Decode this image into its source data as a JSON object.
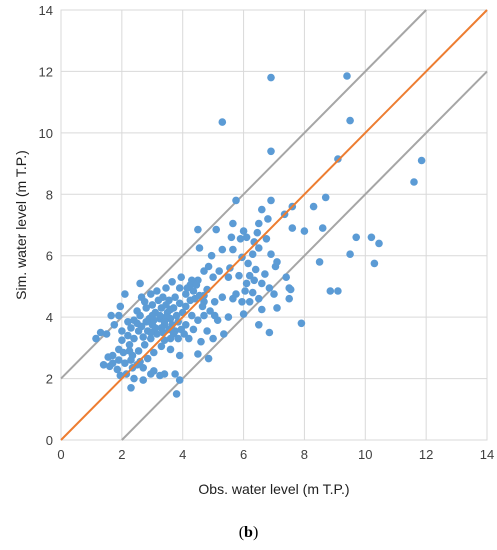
{
  "chart_data": {
    "type": "scatter",
    "xlabel": "Obs. water level (m T.P.)",
    "ylabel": "Sim. water level (m T.P.)",
    "xlim": [
      0,
      14
    ],
    "ylim": [
      0,
      14
    ],
    "xticks": [
      "0",
      "2",
      "4",
      "6",
      "8",
      "10",
      "12",
      "14"
    ],
    "yticks": [
      "0",
      "2",
      "4",
      "6",
      "8",
      "10",
      "12",
      "14"
    ],
    "grid": true,
    "colors": {
      "points": "#5b9bd5",
      "identity_line": "#ed7d31",
      "band_lines": "#a6a6a6",
      "grid": "#d9d9d9"
    },
    "identity_line": {
      "x": [
        0,
        14
      ],
      "y": [
        0,
        14
      ]
    },
    "upper_line": {
      "x": [
        0,
        12
      ],
      "y": [
        2,
        14
      ]
    },
    "lower_line": {
      "x": [
        2,
        14
      ],
      "y": [
        0,
        12
      ]
    },
    "points": [
      [
        6.9,
        11.8
      ],
      [
        9.4,
        11.85
      ],
      [
        5.3,
        10.35
      ],
      [
        9.5,
        10.4
      ],
      [
        6.9,
        9.4
      ],
      [
        9.1,
        9.15
      ],
      [
        11.85,
        9.1
      ],
      [
        11.6,
        8.4
      ],
      [
        8.7,
        7.9
      ],
      [
        5.75,
        7.8
      ],
      [
        6.9,
        7.8
      ],
      [
        8.3,
        7.6
      ],
      [
        7.6,
        7.6
      ],
      [
        6.6,
        7.5
      ],
      [
        7.35,
        7.35
      ],
      [
        6.8,
        7.2
      ],
      [
        6.5,
        7.05
      ],
      [
        6.0,
        6.8
      ],
      [
        7.6,
        6.9
      ],
      [
        8.0,
        6.8
      ],
      [
        8.6,
        6.9
      ],
      [
        9.7,
        6.6
      ],
      [
        10.2,
        6.6
      ],
      [
        10.45,
        6.4
      ],
      [
        9.5,
        6.05
      ],
      [
        10.3,
        5.75
      ],
      [
        8.5,
        5.8
      ],
      [
        7.4,
        5.3
      ],
      [
        7.05,
        5.65
      ],
      [
        6.7,
        5.4
      ],
      [
        6.4,
        5.55
      ],
      [
        6.15,
        5.75
      ],
      [
        5.95,
        5.95
      ],
      [
        5.65,
        6.2
      ],
      [
        5.9,
        6.55
      ],
      [
        5.6,
        6.6
      ],
      [
        6.35,
        6.45
      ],
      [
        6.75,
        6.55
      ],
      [
        6.5,
        6.25
      ],
      [
        6.9,
        6.05
      ],
      [
        7.1,
        5.8
      ],
      [
        6.3,
        6.05
      ],
      [
        5.3,
        6.2
      ],
      [
        4.95,
        6.0
      ],
      [
        4.55,
        6.25
      ],
      [
        4.5,
        6.85
      ],
      [
        5.1,
        6.85
      ],
      [
        5.65,
        7.05
      ],
      [
        7.5,
        4.95
      ],
      [
        7.5,
        4.6
      ],
      [
        7.0,
        4.75
      ],
      [
        6.5,
        4.6
      ],
      [
        6.2,
        4.5
      ],
      [
        6.1,
        5.1
      ],
      [
        6.3,
        4.8
      ],
      [
        6.85,
        4.95
      ],
      [
        6.6,
        5.1
      ],
      [
        5.5,
        5.3
      ],
      [
        5.2,
        5.5
      ],
      [
        5.0,
        5.3
      ],
      [
        4.7,
        5.5
      ],
      [
        4.5,
        5.2
      ],
      [
        4.3,
        5.2
      ],
      [
        4.8,
        4.9
      ],
      [
        5.3,
        4.65
      ],
      [
        5.65,
        4.6
      ],
      [
        5.95,
        4.5
      ],
      [
        6.0,
        4.1
      ],
      [
        6.5,
        3.75
      ],
      [
        6.85,
        3.5
      ],
      [
        7.9,
        3.8
      ],
      [
        8.85,
        4.85
      ],
      [
        9.1,
        4.85
      ],
      [
        5.5,
        4.0
      ],
      [
        5.15,
        3.9
      ],
      [
        4.9,
        4.2
      ],
      [
        4.7,
        4.5
      ],
      [
        4.4,
        4.6
      ],
      [
        4.1,
        4.75
      ],
      [
        3.9,
        4.95
      ],
      [
        3.65,
        5.15
      ],
      [
        3.75,
        4.65
      ],
      [
        3.55,
        4.55
      ],
      [
        3.35,
        4.65
      ],
      [
        3.2,
        4.55
      ],
      [
        2.95,
        4.75
      ],
      [
        2.65,
        4.65
      ],
      [
        2.6,
        5.1
      ],
      [
        2.1,
        4.75
      ],
      [
        1.95,
        4.35
      ],
      [
        1.9,
        4.05
      ],
      [
        1.65,
        4.05
      ],
      [
        1.75,
        3.75
      ],
      [
        2.0,
        3.55
      ],
      [
        2.3,
        3.65
      ],
      [
        2.4,
        3.9
      ],
      [
        2.6,
        4.05
      ],
      [
        2.8,
        4.3
      ],
      [
        2.9,
        3.95
      ],
      [
        3.1,
        4.15
      ],
      [
        3.3,
        4.3
      ],
      [
        3.5,
        4.15
      ],
      [
        3.7,
        4.3
      ],
      [
        3.9,
        4.45
      ],
      [
        4.1,
        4.35
      ],
      [
        4.3,
        4.05
      ],
      [
        4.5,
        3.9
      ],
      [
        4.7,
        4.05
      ],
      [
        4.35,
        3.6
      ],
      [
        4.1,
        3.75
      ],
      [
        3.85,
        3.85
      ],
      [
        3.6,
        3.95
      ],
      [
        3.4,
        3.75
      ],
      [
        3.25,
        3.95
      ],
      [
        3.0,
        3.75
      ],
      [
        2.85,
        3.55
      ],
      [
        2.7,
        3.35
      ],
      [
        2.55,
        3.55
      ],
      [
        2.4,
        3.3
      ],
      [
        2.25,
        3.1
      ],
      [
        2.05,
        2.85
      ],
      [
        1.9,
        2.6
      ],
      [
        1.7,
        2.5
      ],
      [
        1.85,
        2.3
      ],
      [
        2.1,
        2.5
      ],
      [
        2.35,
        2.75
      ],
      [
        2.55,
        2.9
      ],
      [
        2.75,
        3.1
      ],
      [
        2.95,
        3.3
      ],
      [
        3.15,
        3.45
      ],
      [
        3.35,
        3.5
      ],
      [
        3.55,
        3.6
      ],
      [
        3.75,
        3.55
      ],
      [
        3.95,
        3.6
      ],
      [
        4.2,
        3.3
      ],
      [
        4.6,
        3.2
      ],
      [
        5.0,
        3.3
      ],
      [
        5.35,
        3.45
      ],
      [
        4.5,
        2.8
      ],
      [
        4.85,
        2.65
      ],
      [
        3.9,
        2.75
      ],
      [
        3.6,
        2.95
      ],
      [
        3.3,
        3.05
      ],
      [
        3.05,
        2.85
      ],
      [
        2.85,
        2.65
      ],
      [
        2.6,
        2.55
      ],
      [
        2.35,
        2.35
      ],
      [
        2.15,
        2.15
      ],
      [
        2.4,
        2.0
      ],
      [
        2.3,
        1.7
      ],
      [
        2.7,
        1.95
      ],
      [
        3.05,
        2.25
      ],
      [
        3.25,
        2.1
      ],
      [
        3.4,
        2.15
      ],
      [
        3.75,
        2.15
      ],
      [
        3.9,
        1.95
      ],
      [
        3.8,
        1.5
      ],
      [
        2.95,
        2.15
      ],
      [
        1.15,
        3.3
      ],
      [
        1.3,
        3.5
      ],
      [
        1.5,
        3.45
      ],
      [
        1.4,
        2.45
      ],
      [
        1.6,
        2.4
      ],
      [
        1.7,
        2.75
      ],
      [
        1.9,
        2.95
      ],
      [
        1.55,
        2.7
      ],
      [
        1.95,
        2.1
      ],
      [
        2.2,
        3.85
      ],
      [
        2.5,
        4.2
      ],
      [
        3.15,
        4.85
      ],
      [
        3.45,
        4.95
      ],
      [
        3.95,
        5.3
      ],
      [
        4.25,
        5.05
      ],
      [
        4.7,
        4.7
      ],
      [
        5.05,
        4.5
      ],
      [
        4.65,
        4.35
      ],
      [
        4.0,
        4.15
      ],
      [
        3.8,
        4.05
      ],
      [
        3.6,
        4.25
      ],
      [
        3.45,
        4.4
      ],
      [
        3.25,
        4.05
      ],
      [
        3.05,
        3.9
      ],
      [
        2.8,
        3.85
      ],
      [
        2.65,
        3.7
      ],
      [
        2.5,
        3.8
      ],
      [
        2.75,
        4.5
      ],
      [
        3.0,
        4.4
      ],
      [
        3.4,
        3.25
      ],
      [
        3.6,
        3.3
      ],
      [
        3.85,
        3.3
      ],
      [
        4.05,
        3.45
      ],
      [
        3.65,
        3.75
      ],
      [
        3.45,
        4.0
      ],
      [
        3.3,
        3.65
      ],
      [
        3.1,
        3.65
      ],
      [
        2.95,
        3.5
      ],
      [
        4.25,
        4.55
      ],
      [
        4.35,
        4.85
      ],
      [
        4.55,
        4.7
      ],
      [
        5.05,
        4.05
      ],
      [
        5.55,
        5.6
      ],
      [
        5.85,
        5.35
      ],
      [
        6.2,
        5.35
      ],
      [
        6.35,
        5.2
      ],
      [
        6.05,
        4.85
      ],
      [
        5.75,
        4.75
      ],
      [
        6.6,
        4.25
      ],
      [
        7.1,
        4.3
      ],
      [
        7.55,
        4.9
      ],
      [
        6.1,
        6.6
      ],
      [
        6.45,
        6.75
      ],
      [
        4.85,
        5.65
      ],
      [
        4.15,
        4.95
      ],
      [
        4.45,
        5.05
      ],
      [
        3.0,
        4.05
      ],
      [
        2.2,
        3.4
      ],
      [
        2.0,
        3.25
      ],
      [
        2.3,
        2.6
      ],
      [
        2.5,
        2.45
      ],
      [
        2.7,
        2.35
      ],
      [
        2.25,
        2.9
      ],
      [
        3.4,
        3.85
      ],
      [
        3.7,
        3.45
      ],
      [
        4.8,
        3.55
      ]
    ]
  },
  "caption": {
    "open": "(",
    "letter": "b",
    "close": ")"
  }
}
